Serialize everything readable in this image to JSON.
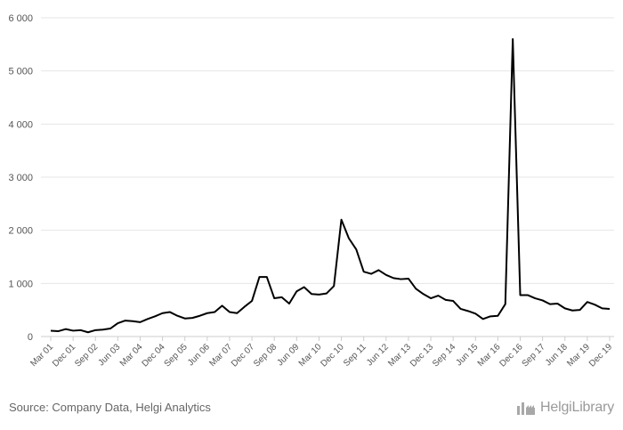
{
  "chart_data": {
    "type": "line",
    "title": "",
    "xlabel": "",
    "ylabel": "",
    "ylim": [
      0,
      6000
    ],
    "y_ticks": [
      0,
      1000,
      2000,
      3000,
      4000,
      5000,
      6000
    ],
    "y_tick_labels": [
      "0",
      "1 000",
      "2 000",
      "3 000",
      "4 000",
      "5 000",
      "6 000"
    ],
    "x_tick_labels": [
      "Mar 01",
      "Dec 01",
      "Sep 02",
      "Jun 03",
      "Mar 04",
      "Dec 04",
      "Sep 05",
      "Jun 06",
      "Mar 07",
      "Dec 07",
      "Sep 08",
      "Jun 09",
      "Mar 10",
      "Dec 10",
      "Sep 11",
      "Jun 12",
      "Mar 13",
      "Dec 13",
      "Sep 14",
      "Jun 15",
      "Mar 16",
      "Dec 16",
      "Sep 17",
      "Jun 18",
      "Mar 19",
      "Dec 19"
    ],
    "color": "#000000",
    "series": [
      {
        "name": "Value",
        "values": [
          110,
          100,
          140,
          110,
          120,
          80,
          120,
          130,
          150,
          250,
          300,
          290,
          270,
          330,
          380,
          440,
          460,
          390,
          340,
          350,
          390,
          440,
          460,
          580,
          460,
          440,
          560,
          670,
          1120,
          1120,
          720,
          740,
          620,
          850,
          930,
          800,
          790,
          810,
          950,
          2200,
          1850,
          1640,
          1220,
          1180,
          1250,
          1160,
          1100,
          1080,
          1090,
          900,
          800,
          720,
          770,
          690,
          670,
          520,
          480,
          430,
          330,
          380,
          390,
          610,
          5600,
          780,
          780,
          720,
          680,
          610,
          620,
          530,
          490,
          500,
          650,
          600,
          530,
          520
        ]
      }
    ]
  },
  "footer": {
    "source": "Source: Company Data, Helgi Analytics",
    "logo_text": "HelgiLibrary"
  }
}
